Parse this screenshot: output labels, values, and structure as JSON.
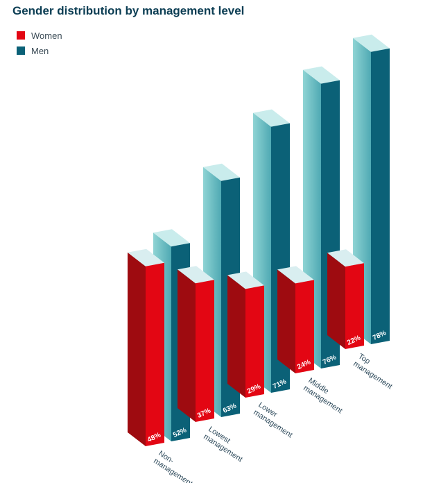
{
  "title": "Gender distribution by management level",
  "legend": {
    "women": "Women",
    "men": "Men"
  },
  "colors": {
    "women": "#e30613",
    "men": "#0b6177",
    "title": "#0b3d53",
    "women_side": "#9e0b10",
    "men_side": "#7fcaca",
    "men_top": "#c9ecec"
  },
  "chart_data": {
    "type": "bar",
    "title": "Gender distribution by management level",
    "categories": [
      "Non-management",
      "Lowest management",
      "Lower management",
      "Middle management",
      "Top management"
    ],
    "category_lines": [
      [
        "Non-",
        "management"
      ],
      [
        "Lowest",
        "management"
      ],
      [
        "Lower",
        "management"
      ],
      [
        "Middle",
        "management"
      ],
      [
        "Top",
        "management"
      ]
    ],
    "series": [
      {
        "name": "Women",
        "values": [
          48,
          37,
          29,
          24,
          22
        ],
        "labels": [
          "48%",
          "37%",
          "29%",
          "24%",
          "22%"
        ]
      },
      {
        "name": "Men",
        "values": [
          52,
          63,
          71,
          76,
          78
        ],
        "labels": [
          "52%",
          "63%",
          "71%",
          "76%",
          "78%"
        ]
      }
    ],
    "unit": "%",
    "legend_position": "top-left",
    "grid": false
  }
}
